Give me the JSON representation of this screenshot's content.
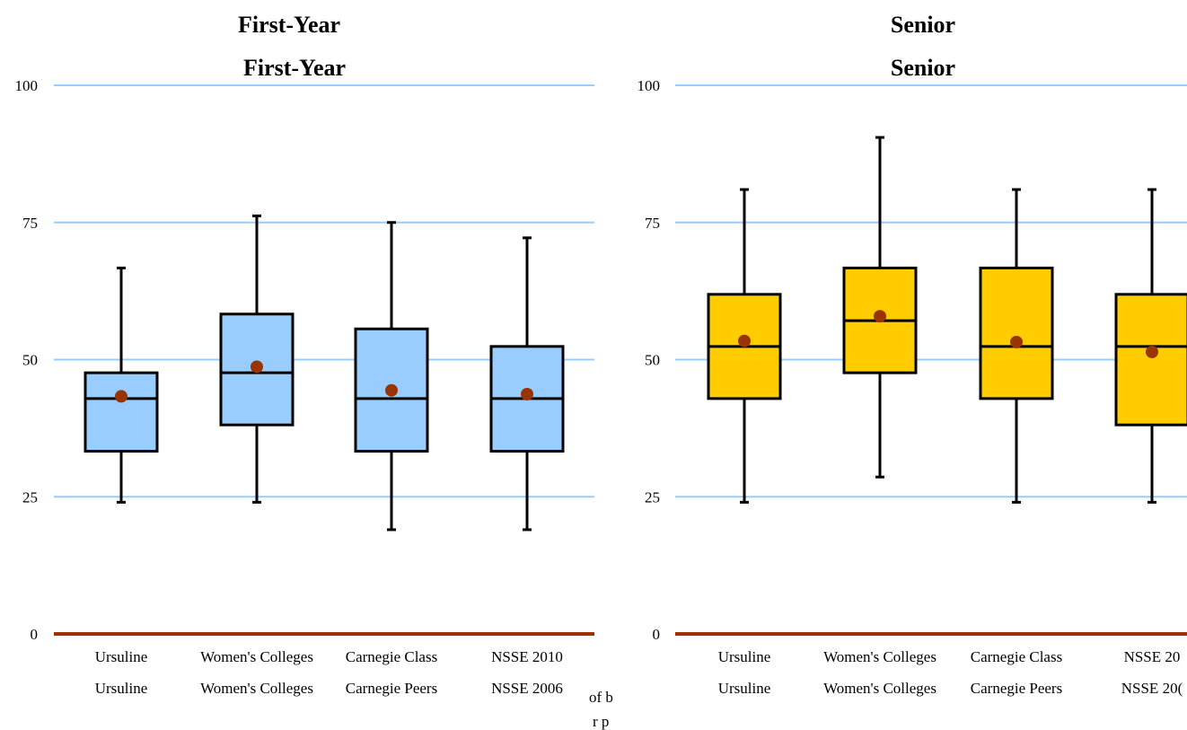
{
  "chart_data": [
    {
      "type": "box",
      "title": "First-Year",
      "title_overlay": "First-Year",
      "ylim": [
        0,
        100
      ],
      "yticks": [
        0,
        25,
        50,
        75,
        100
      ],
      "grid": true,
      "colors": {
        "box": "#99ccff",
        "mean": "#993300",
        "grid": "#99ccff",
        "baseline": "#993300"
      },
      "categories": [
        "Ursuline",
        "Women's Colleges",
        "Carnegie Class",
        "NSSE 2010"
      ],
      "categories_under": [
        "Ursuline",
        "Women's Colleges",
        "Carnegie Peers",
        "NSSE 2006"
      ],
      "boxes": [
        {
          "min": 24,
          "q1": 33.3,
          "median": 42.9,
          "q3": 47.6,
          "max": 66.7,
          "mean": 43.3
        },
        {
          "min": 24,
          "q1": 38.1,
          "median": 47.6,
          "q3": 58.3,
          "max": 76.2,
          "mean": 48.7
        },
        {
          "min": 19,
          "q1": 33.3,
          "median": 42.9,
          "q3": 55.6,
          "max": 75.0,
          "mean": 44.4
        },
        {
          "min": 19,
          "q1": 33.3,
          "median": 42.9,
          "q3": 52.4,
          "max": 72.2,
          "mean": 43.7
        }
      ],
      "fragments": [
        "of b",
        "r p"
      ]
    },
    {
      "type": "box",
      "title": "Senior",
      "title_overlay": "Senior",
      "ylim": [
        0,
        100
      ],
      "yticks": [
        0,
        25,
        50,
        75,
        100
      ],
      "grid": true,
      "colors": {
        "box": "#ffcc00",
        "mean": "#993300",
        "grid": "#99ccff",
        "baseline": "#993300"
      },
      "categories": [
        "Ursuline",
        "Women's Colleges",
        "Carnegie Class",
        "NSSE 20"
      ],
      "categories_under": [
        "Ursuline",
        "Women's Colleges",
        "Carnegie Peers",
        "NSSE 20("
      ],
      "boxes": [
        {
          "min": 24,
          "q1": 42.9,
          "median": 52.4,
          "q3": 61.9,
          "max": 81.0,
          "mean": 53.4
        },
        {
          "min": 28.6,
          "q1": 47.6,
          "median": 57.1,
          "q3": 66.7,
          "max": 90.5,
          "mean": 57.9
        },
        {
          "min": 24,
          "q1": 42.9,
          "median": 52.4,
          "q3": 66.7,
          "max": 81.0,
          "mean": 53.2
        },
        {
          "min": 24,
          "q1": 38.1,
          "median": 52.4,
          "q3": 61.9,
          "max": 81.0,
          "mean": 51.4
        }
      ]
    }
  ]
}
